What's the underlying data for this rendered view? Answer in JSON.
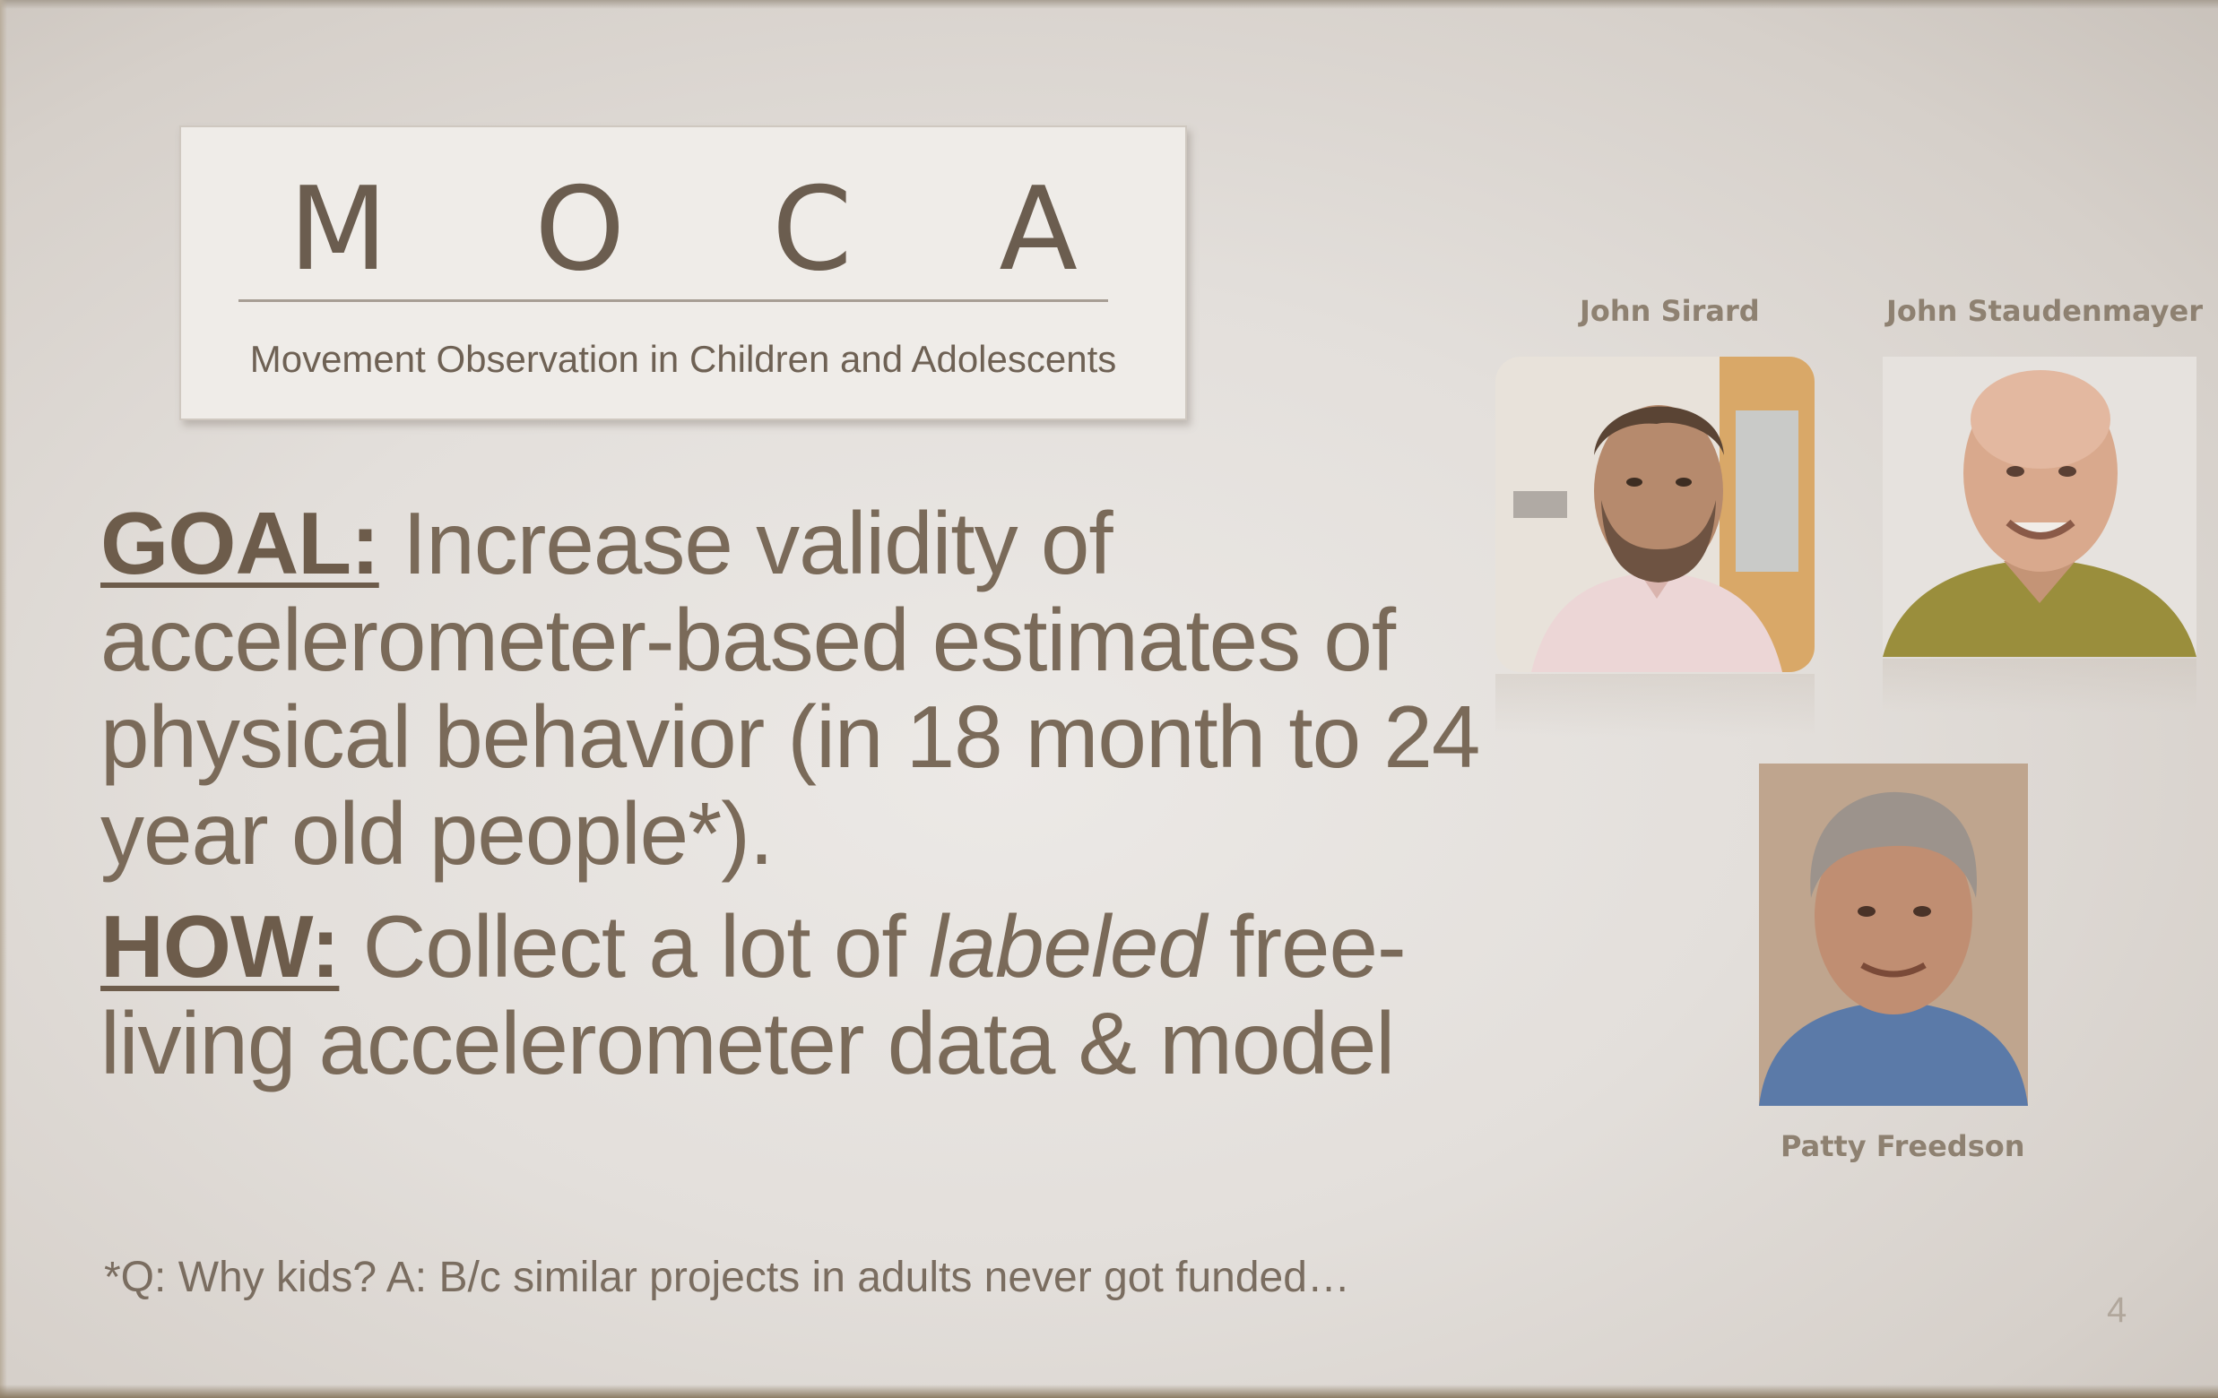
{
  "logo": {
    "letters": [
      "M",
      "O",
      "C",
      "A"
    ],
    "subtitle": "Movement Observation in Children and Adolescents"
  },
  "goal": {
    "label": "GOAL:",
    "text": " Increase validity of accelerometer-based estimates of physical behavior (in 18 month to 24 year old people*)."
  },
  "how": {
    "label": "HOW:",
    "text_before": " Collect a lot of ",
    "emphasis": "labeled",
    "text_after": " free-living accelerometer data & model"
  },
  "footnote": "*Q: Why kids? A: B/c similar projects in adults never got funded…",
  "page_number": "4",
  "people": [
    {
      "name": "John Sirard"
    },
    {
      "name": "John Staudenmayer"
    },
    {
      "name": "Patty Freedson"
    }
  ]
}
